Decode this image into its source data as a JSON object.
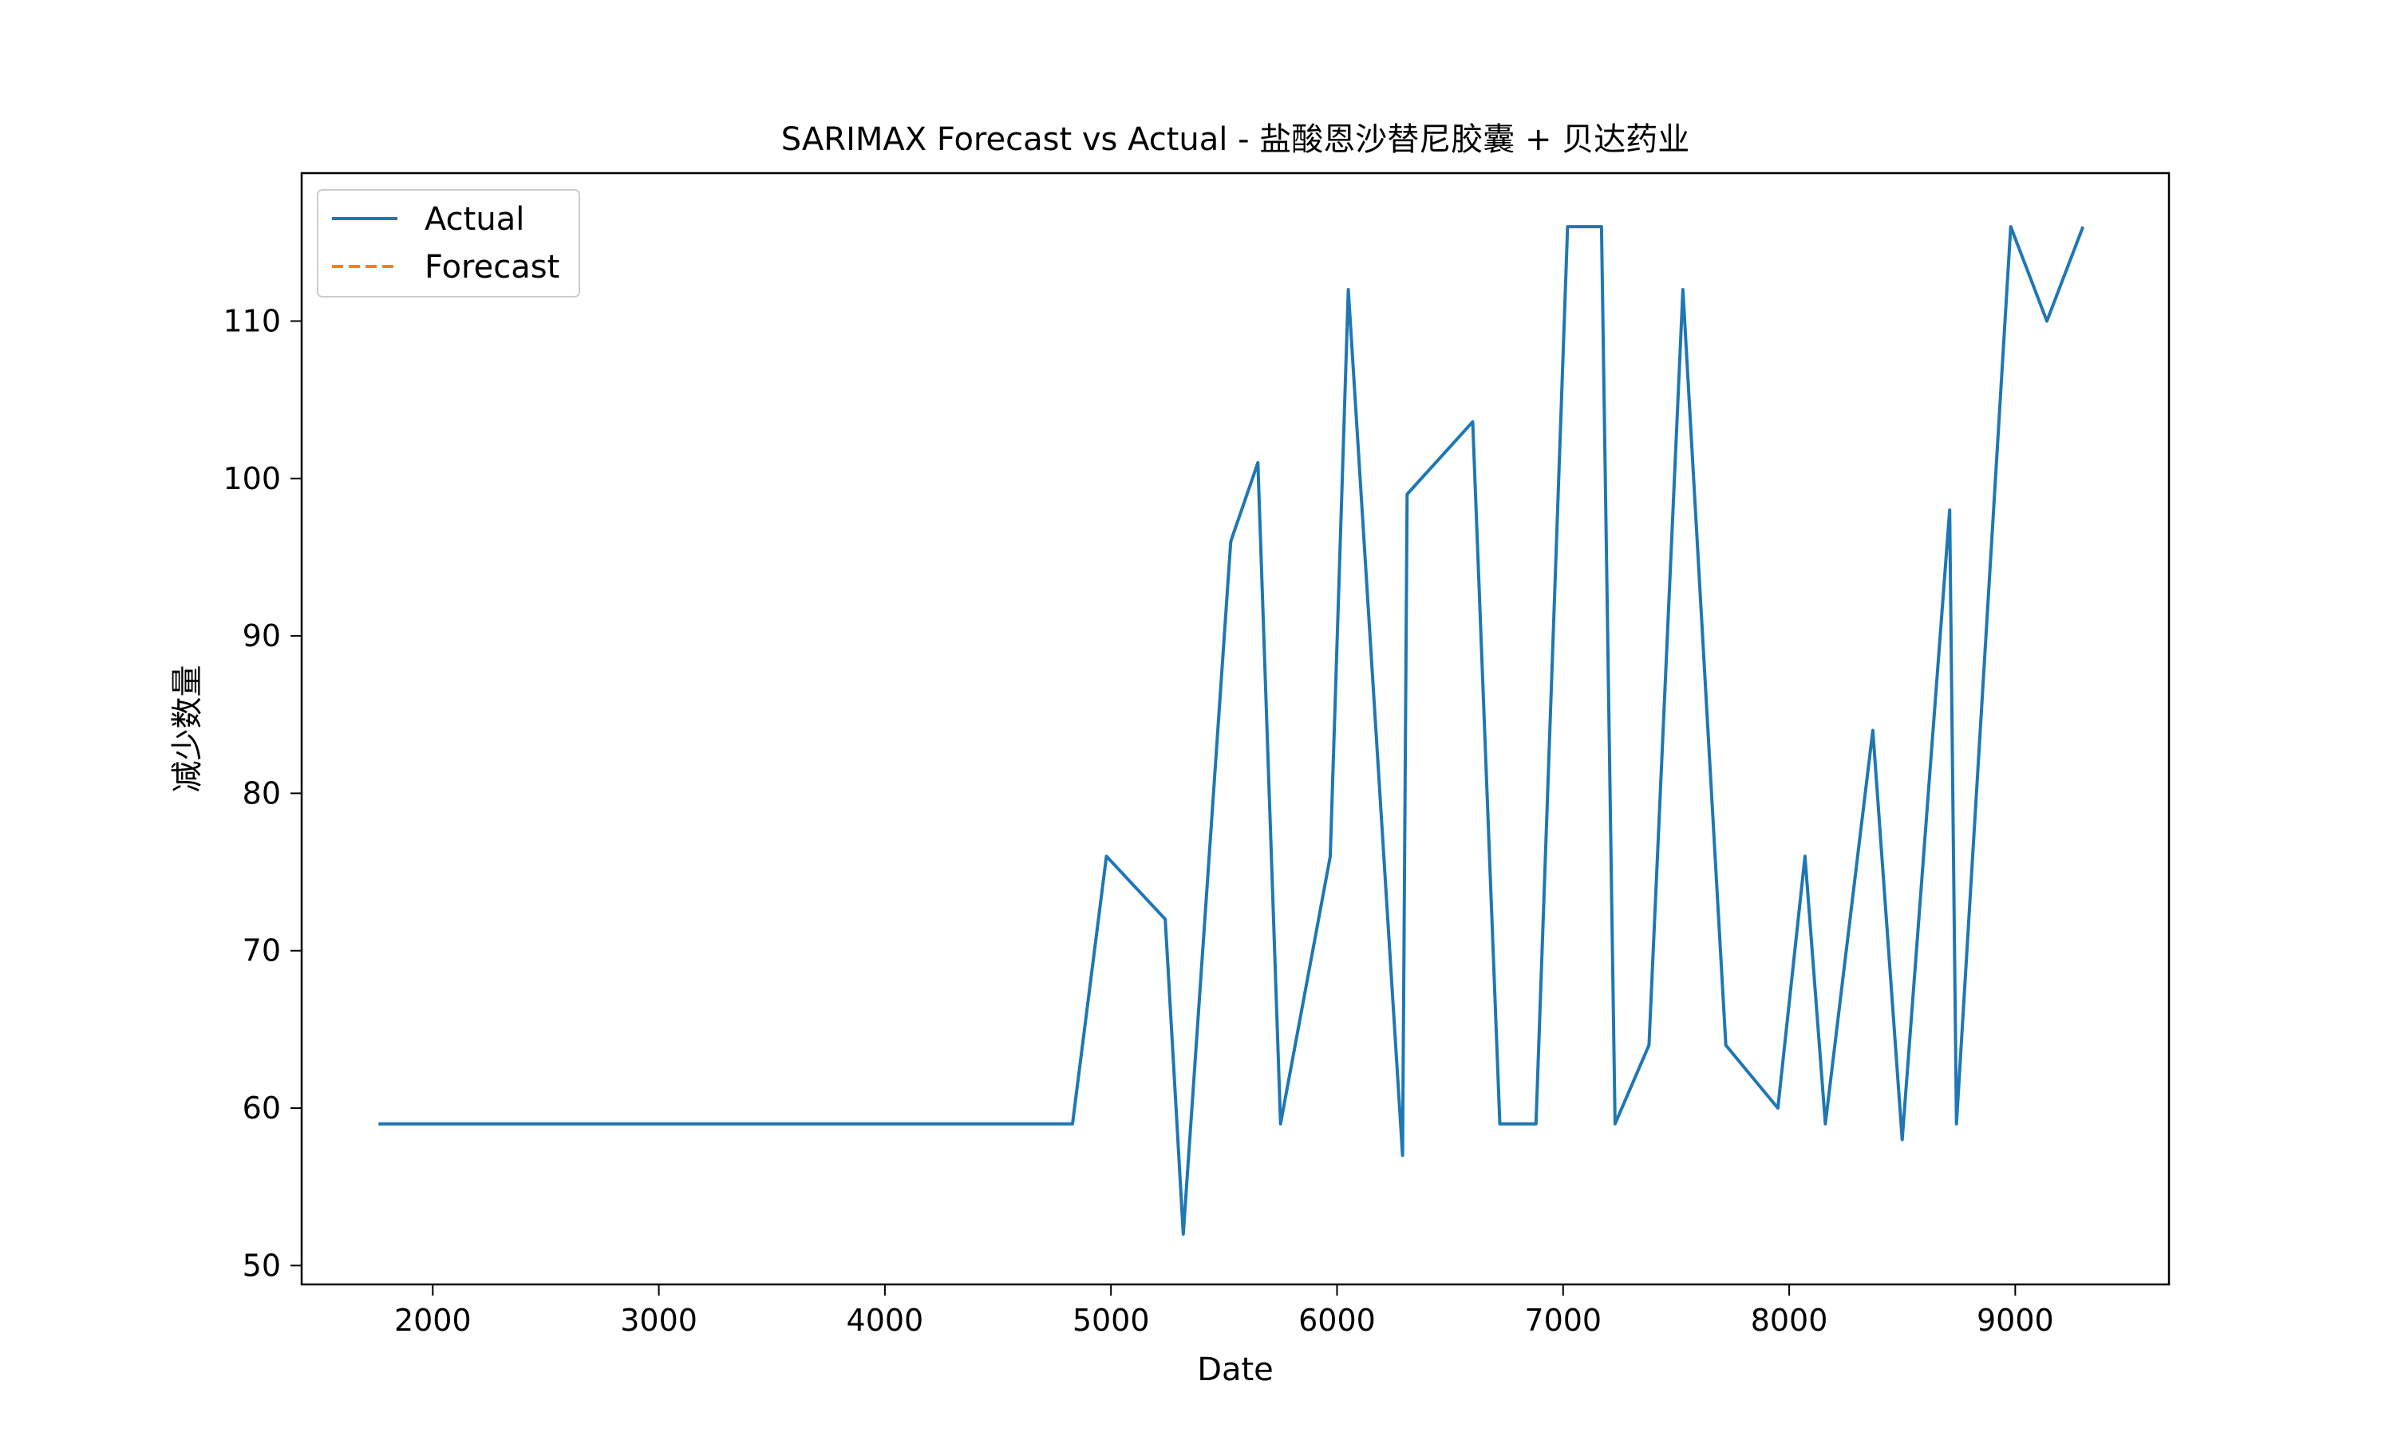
{
  "chart_data": {
    "type": "line",
    "title": "SARIMAX Forecast vs Actual - 盐酸恩沙替尼胶囊 + 贝达药业",
    "xlabel": "Date",
    "ylabel": "减少数量",
    "xlim": [
      1420,
      9680
    ],
    "ylim": [
      48.8,
      119.4
    ],
    "xticks": [
      2000,
      3000,
      4000,
      5000,
      6000,
      7000,
      8000,
      9000
    ],
    "yticks": [
      50,
      60,
      70,
      80,
      90,
      100,
      110
    ],
    "grid": false,
    "legend": {
      "placement": "top-left",
      "entries": [
        "Actual",
        "Forecast"
      ]
    },
    "series": [
      {
        "name": "Actual",
        "color": "#1f77b4",
        "style": "solid",
        "x": [
          1760,
          4830,
          4980,
          5240,
          5320,
          5530,
          5650,
          5750,
          5970,
          6050,
          6290,
          6310,
          6600,
          6720,
          6880,
          7020,
          7170,
          7230,
          7380,
          7530,
          7720,
          7950,
          8070,
          8160,
          8370,
          8500,
          8710,
          8740,
          8980,
          9140,
          9300
        ],
        "y": [
          59,
          59,
          76,
          72,
          52,
          96,
          101,
          59,
          76,
          112,
          57,
          99,
          103.6,
          59,
          59,
          116,
          116,
          59,
          64,
          112,
          64,
          60,
          76,
          59,
          84,
          58,
          98,
          59,
          116,
          110,
          116
        ]
      },
      {
        "name": "Forecast",
        "color": "#ff7f0e",
        "style": "dashed",
        "x": [],
        "y": []
      }
    ]
  }
}
